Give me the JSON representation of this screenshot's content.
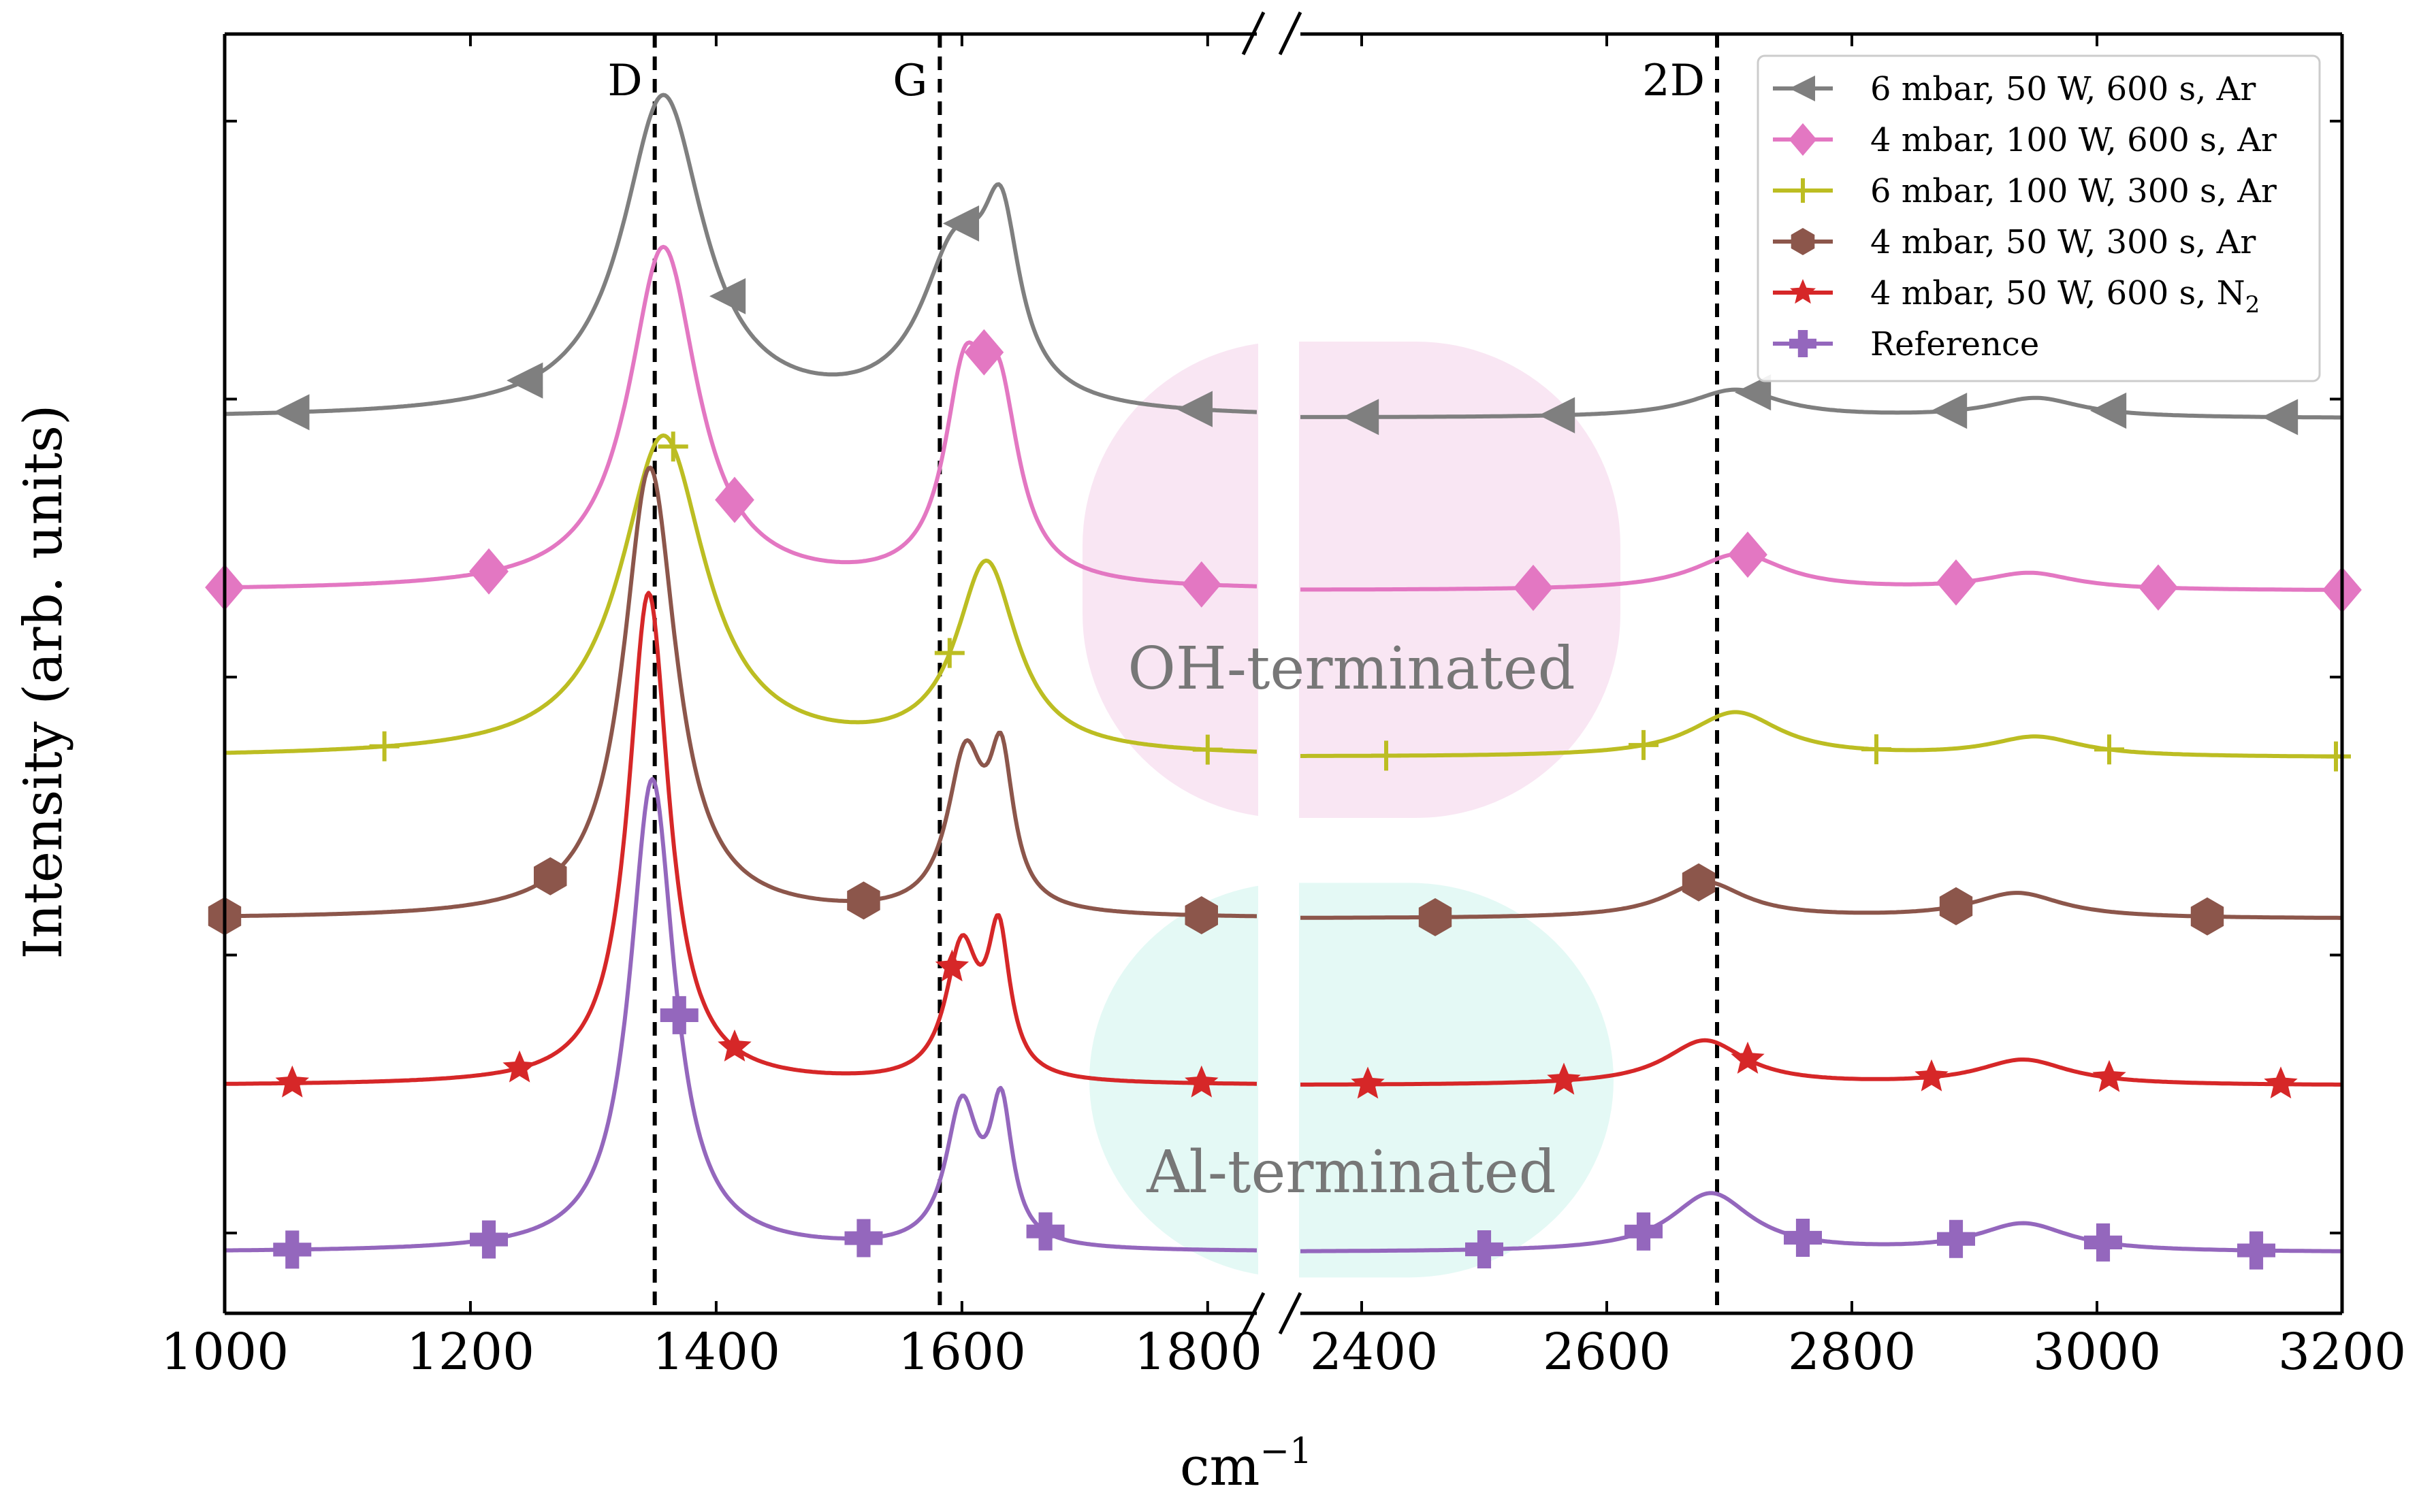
{
  "chart_data": {
    "type": "line",
    "xlabel": "cm",
    "xlabel_superscript": "−1",
    "ylabel": "Intensity (arb. units)",
    "axis_break": {
      "from": 1840,
      "to": 2350
    },
    "segments": [
      {
        "xlim": [
          1000,
          1840
        ]
      },
      {
        "xlim": [
          2350,
          3200
        ]
      }
    ],
    "x_ticks": [
      {
        "value": 1000,
        "label": "1000"
      },
      {
        "value": 1200,
        "label": "1200"
      },
      {
        "value": 1400,
        "label": "1400"
      },
      {
        "value": 1600,
        "label": "1600"
      },
      {
        "value": 1800,
        "label": "1800"
      },
      {
        "value": 2400,
        "label": "2400"
      },
      {
        "value": 2600,
        "label": "2600"
      },
      {
        "value": 2800,
        "label": "2800"
      },
      {
        "value": 3000,
        "label": "3000"
      },
      {
        "value": 3200,
        "label": "3200"
      }
    ],
    "ylim": [
      -0.3,
      4.3
    ],
    "y_ticks": [
      0,
      1,
      2,
      3,
      4
    ],
    "y_ticklabels": false,
    "peak_lines": [
      {
        "label": "D",
        "x": 1350
      },
      {
        "label": "G",
        "x": 1582
      },
      {
        "label": "2D",
        "x": 2690
      }
    ],
    "regions": [
      {
        "label": "OH-terminated",
        "color": "#f9e6f3",
        "x_center": 1850,
        "y_center": 2.35
      },
      {
        "label": "Al-terminated",
        "color": "#e4f9f5",
        "x_center": 1850,
        "y_center": 0.55
      }
    ],
    "legend_position": "top-right",
    "series": [
      {
        "name_main": "6 mbar, 50 W, 600 s, Ar",
        "name_sub": "",
        "color": "#7f7f7f",
        "marker": "triangle-left",
        "baseline": 2.93,
        "linewidth": 6,
        "peaks": [
          {
            "x": 1357,
            "h": 1.15,
            "w": 40
          },
          {
            "x": 1595,
            "h": 0.55,
            "w": 35
          },
          {
            "x": 1632,
            "h": 0.55,
            "w": 18
          },
          {
            "x": 2705,
            "h": 0.1,
            "w": 45
          },
          {
            "x": 2950,
            "h": 0.07,
            "w": 45
          }
        ],
        "markers_x": [
          1055,
          1245,
          1410,
          1600,
          1790,
          2400,
          2560,
          2720,
          2880,
          3010,
          3150
        ]
      },
      {
        "name_main": "4 mbar, 100 W, 600 s, Ar",
        "name_sub": "",
        "color": "#e377c2",
        "marker": "diamond",
        "baseline": 2.31,
        "linewidth": 6,
        "peaks": [
          {
            "x": 1357,
            "h": 1.23,
            "w": 34
          },
          {
            "x": 1602,
            "h": 0.65,
            "w": 20
          },
          {
            "x": 1630,
            "h": 0.6,
            "w": 20
          },
          {
            "x": 2708,
            "h": 0.13,
            "w": 45
          },
          {
            "x": 2945,
            "h": 0.06,
            "w": 45
          }
        ],
        "markers_x": [
          1000,
          1215,
          1415,
          1618,
          1795,
          2540,
          2715,
          2885,
          3050,
          3200
        ]
      },
      {
        "name_main": "6 mbar, 100 W, 300 s, Ar",
        "name_sub": "",
        "color": "#bcbd22",
        "marker": "plus-thin",
        "baseline": 1.71,
        "linewidth": 6,
        "peaks": [
          {
            "x": 1357,
            "h": 1.15,
            "w": 42
          },
          {
            "x": 1620,
            "h": 0.68,
            "w": 30
          },
          {
            "x": 2705,
            "h": 0.16,
            "w": 45
          },
          {
            "x": 2950,
            "h": 0.07,
            "w": 45
          }
        ],
        "markers_x": [
          1130,
          1365,
          1590,
          1800,
          2420,
          2630,
          2820,
          3010,
          3195
        ]
      },
      {
        "name_main": "4 mbar, 50 W, 300 s, Ar",
        "name_sub": "",
        "color": "#8c564b",
        "marker": "hexagon",
        "baseline": 1.13,
        "linewidth": 6,
        "peaks": [
          {
            "x": 1346,
            "h": 1.62,
            "w": 26
          },
          {
            "x": 1603,
            "h": 0.55,
            "w": 18
          },
          {
            "x": 1632,
            "h": 0.5,
            "w": 12
          },
          {
            "x": 2680,
            "h": 0.13,
            "w": 40
          },
          {
            "x": 2935,
            "h": 0.09,
            "w": 45
          }
        ],
        "markers_x": [
          1000,
          1265,
          1520,
          1795,
          2460,
          2675,
          2885,
          3090
        ]
      },
      {
        "name_main": "4 mbar, 50 W, 600 s, N",
        "name_sub": "2",
        "color": "#d62728",
        "marker": "star",
        "baseline": 0.53,
        "linewidth": 6,
        "peaks": [
          {
            "x": 1345,
            "h": 1.77,
            "w": 20
          },
          {
            "x": 1600,
            "h": 0.47,
            "w": 16
          },
          {
            "x": 1630,
            "h": 0.5,
            "w": 11
          },
          {
            "x": 2680,
            "h": 0.16,
            "w": 40
          },
          {
            "x": 2940,
            "h": 0.09,
            "w": 45
          }
        ],
        "markers_x": [
          1055,
          1240,
          1415,
          1592,
          1795,
          2405,
          2565,
          2715,
          2865,
          3010,
          3150
        ]
      },
      {
        "name_main": "Reference",
        "name_sub": "",
        "color": "#9467bd",
        "marker": "plus-thick",
        "baseline": -0.07,
        "linewidth": 6,
        "peaks": [
          {
            "x": 1348,
            "h": 1.7,
            "w": 22
          },
          {
            "x": 1600,
            "h": 0.5,
            "w": 16
          },
          {
            "x": 1632,
            "h": 0.48,
            "w": 11
          },
          {
            "x": 2685,
            "h": 0.21,
            "w": 40
          },
          {
            "x": 2940,
            "h": 0.1,
            "w": 45
          }
        ],
        "markers_x": [
          1055,
          1215,
          1370,
          1520,
          1668,
          2500,
          2630,
          2760,
          2885,
          3005,
          3130
        ]
      }
    ]
  }
}
